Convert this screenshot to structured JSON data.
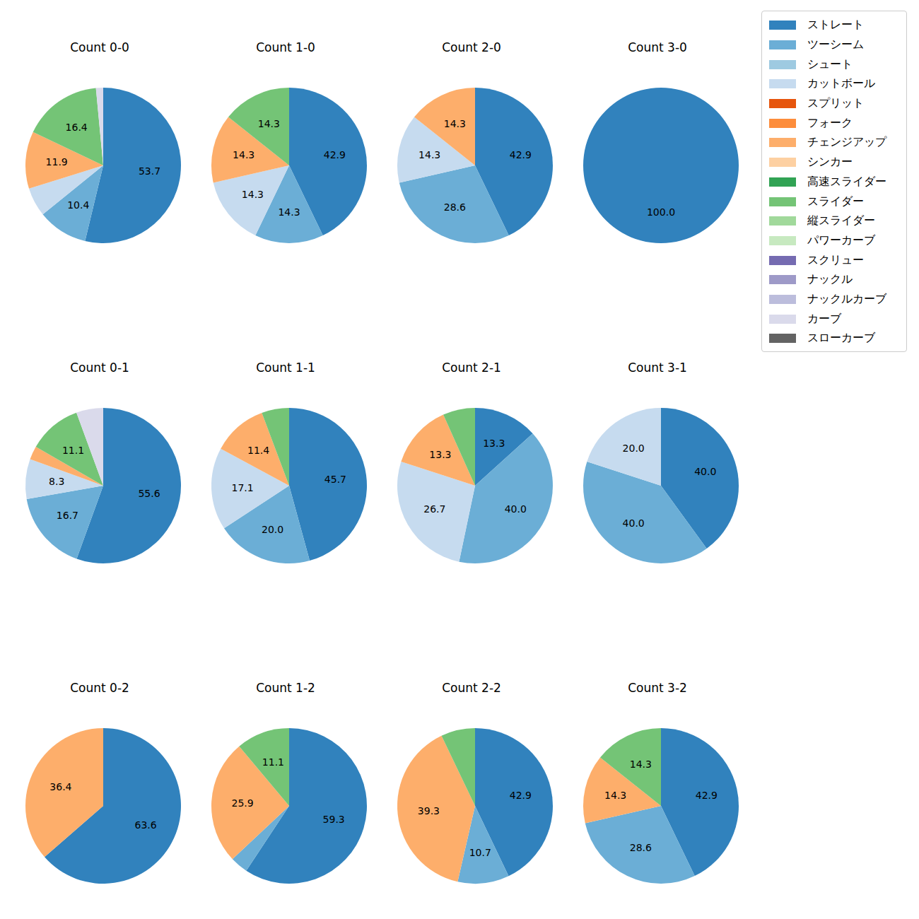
{
  "legend": "upper right",
  "series": [
    {
      "name": "ストレート",
      "color": "#3182bd"
    },
    {
      "name": "ツーシーム",
      "color": "#6baed6"
    },
    {
      "name": "シュート",
      "color": "#9ecae1"
    },
    {
      "name": "カットボール",
      "color": "#c6dbef"
    },
    {
      "name": "スプリット",
      "color": "#e6550d"
    },
    {
      "name": "フォーク",
      "color": "#fd8d3c"
    },
    {
      "name": "チェンジアップ",
      "color": "#fdae6b"
    },
    {
      "name": "シンカー",
      "color": "#fdd0a2"
    },
    {
      "name": "高速スライダー",
      "color": "#31a354"
    },
    {
      "name": "スライダー",
      "color": "#74c476"
    },
    {
      "name": "縦スライダー",
      "color": "#a1d99b"
    },
    {
      "name": "パワーカーブ",
      "color": "#c7e9c0"
    },
    {
      "name": "スクリュー",
      "color": "#756bb1"
    },
    {
      "name": "ナックル",
      "color": "#9e9ac8"
    },
    {
      "name": "ナックルカーブ",
      "color": "#bcbddc"
    },
    {
      "name": "カーブ",
      "color": "#dadaeb"
    },
    {
      "name": "スローカーブ",
      "color": "#636363"
    }
  ],
  "chart_data": [
    {
      "type": "pie",
      "title": "Count 0-0",
      "data_labels": true,
      "categories": [
        "ストレート",
        "ツーシーム",
        "カットボール",
        "チェンジアップ",
        "スライダー",
        "カーブ"
      ],
      "values": [
        53.7,
        10.4,
        6.0,
        11.9,
        16.4,
        1.5
      ],
      "value_labels": [
        "53.7",
        "10.4",
        null,
        "11.9",
        "16.4",
        null
      ]
    },
    {
      "type": "pie",
      "title": "Count 1-0",
      "data_labels": true,
      "categories": [
        "ストレート",
        "ツーシーム",
        "カットボール",
        "チェンジアップ",
        "スライダー"
      ],
      "values": [
        42.9,
        14.3,
        14.3,
        14.3,
        14.3
      ],
      "value_labels": [
        "42.9",
        "14.3",
        "14.3",
        "14.3",
        "14.3"
      ]
    },
    {
      "type": "pie",
      "title": "Count 2-0",
      "data_labels": true,
      "categories": [
        "ストレート",
        "ツーシーム",
        "カットボール",
        "チェンジアップ"
      ],
      "values": [
        42.9,
        28.6,
        14.3,
        14.3
      ],
      "value_labels": [
        "42.9",
        "28.6",
        "14.3",
        "14.3"
      ]
    },
    {
      "type": "pie",
      "title": "Count 3-0",
      "data_labels": true,
      "categories": [
        "ストレート"
      ],
      "values": [
        100
      ],
      "value_labels": [
        "100.0"
      ]
    },
    {
      "type": "pie",
      "title": "Count 0-1",
      "data_labels": true,
      "categories": [
        "ストレート",
        "ツーシーム",
        "カットボール",
        "チェンジアップ",
        "スライダー",
        "カーブ"
      ],
      "values": [
        55.6,
        16.7,
        8.3,
        2.8,
        11.1,
        5.6
      ],
      "value_labels": [
        "55.6",
        "16.7",
        "8.3",
        null,
        "11.1",
        null
      ]
    },
    {
      "type": "pie",
      "title": "Count 1-1",
      "data_labels": true,
      "categories": [
        "ストレート",
        "ツーシーム",
        "カットボール",
        "チェンジアップ",
        "スライダー"
      ],
      "values": [
        45.7,
        20,
        17.1,
        11.4,
        5.7
      ],
      "value_labels": [
        "45.7",
        "20.0",
        "17.1",
        "11.4",
        null
      ]
    },
    {
      "type": "pie",
      "title": "Count 2-1",
      "data_labels": true,
      "categories": [
        "ストレート",
        "ツーシーム",
        "カットボール",
        "チェンジアップ",
        "スライダー"
      ],
      "values": [
        13.3,
        40,
        26.7,
        13.3,
        6.7
      ],
      "value_labels": [
        "13.3",
        "40.0",
        "26.7",
        "13.3",
        null
      ]
    },
    {
      "type": "pie",
      "title": "Count 3-1",
      "data_labels": true,
      "categories": [
        "ストレート",
        "ツーシーム",
        "カットボール"
      ],
      "values": [
        40,
        40,
        20
      ],
      "value_labels": [
        "40.0",
        "40.0",
        "20.0"
      ]
    },
    {
      "type": "pie",
      "title": "Count 0-2",
      "data_labels": true,
      "categories": [
        "ストレート",
        "チェンジアップ"
      ],
      "values": [
        63.6,
        36.4
      ],
      "value_labels": [
        "63.6",
        "36.4"
      ]
    },
    {
      "type": "pie",
      "title": "Count 1-2",
      "data_labels": true,
      "categories": [
        "ストレート",
        "ツーシーム",
        "チェンジアップ",
        "スライダー"
      ],
      "values": [
        59.3,
        3.7,
        25.9,
        11.1
      ],
      "value_labels": [
        "59.3",
        null,
        "25.9",
        "11.1"
      ]
    },
    {
      "type": "pie",
      "title": "Count 2-2",
      "data_labels": true,
      "categories": [
        "ストレート",
        "ツーシーム",
        "チェンジアップ",
        "スライダー"
      ],
      "values": [
        42.9,
        10.7,
        39.3,
        7.1
      ],
      "value_labels": [
        "42.9",
        "10.7",
        "39.3",
        null
      ]
    },
    {
      "type": "pie",
      "title": "Count 3-2",
      "data_labels": true,
      "categories": [
        "ストレート",
        "ツーシーム",
        "チェンジアップ",
        "スライダー"
      ],
      "values": [
        42.9,
        28.6,
        14.3,
        14.3
      ],
      "value_labels": [
        "42.9",
        "28.6",
        "14.3",
        "14.3"
      ]
    }
  ]
}
